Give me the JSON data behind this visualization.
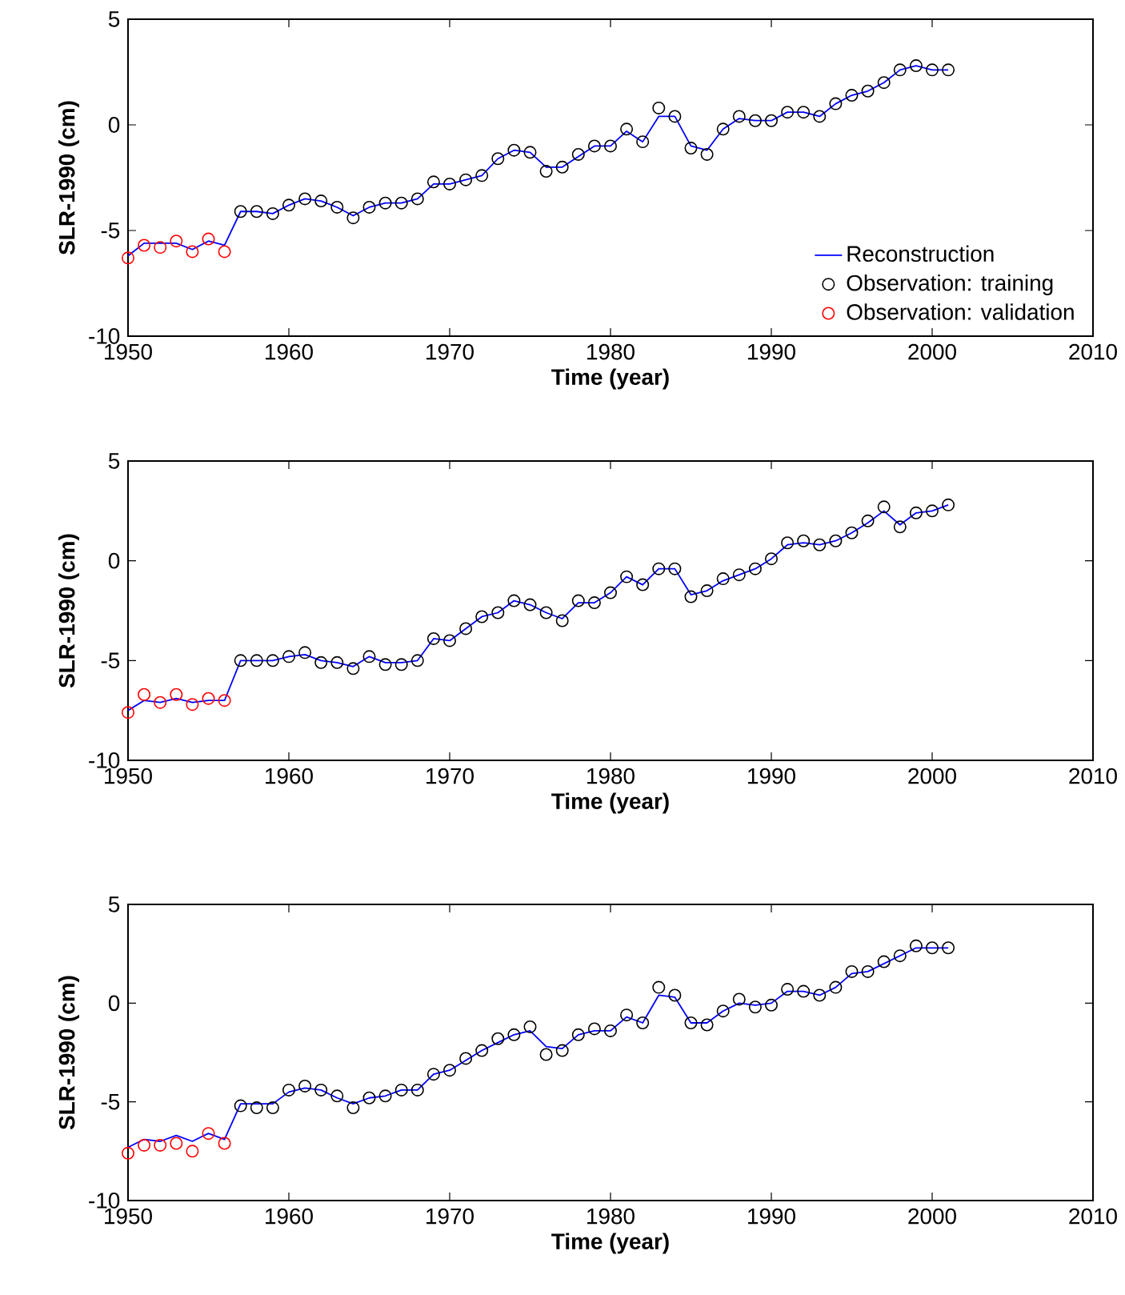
{
  "chart_data": [
    {
      "type": "line",
      "xlabel": "Time (year)",
      "ylabel": "SLR-1990 (cm)",
      "xlim": [
        1950,
        2010
      ],
      "ylim": [
        -10,
        5
      ],
      "xticks": [
        1950,
        1960,
        1970,
        1980,
        1990,
        2000,
        2010
      ],
      "yticks": [
        -10,
        -5,
        0,
        5
      ],
      "legend": "bottom right",
      "series": [
        {
          "name": "Reconstruction",
          "color": "#0000ff",
          "marker": "none",
          "x": [
            1950,
            1951,
            1952,
            1953,
            1954,
            1955,
            1956,
            1957,
            1958,
            1959,
            1960,
            1961,
            1962,
            1963,
            1964,
            1965,
            1966,
            1967,
            1968,
            1969,
            1970,
            1971,
            1972,
            1973,
            1974,
            1975,
            1976,
            1977,
            1978,
            1979,
            1980,
            1981,
            1982,
            1983,
            1984,
            1985,
            1986,
            1987,
            1988,
            1989,
            1990,
            1991,
            1992,
            1993,
            1994,
            1995,
            1996,
            1997,
            1998,
            1999,
            2000,
            2001
          ],
          "values": [
            -6.2,
            -5.6,
            -5.6,
            -5.6,
            -5.9,
            -5.5,
            -5.7,
            -4.1,
            -4.1,
            -4.2,
            -3.8,
            -3.5,
            -3.6,
            -3.9,
            -4.3,
            -3.9,
            -3.7,
            -3.7,
            -3.5,
            -2.8,
            -2.8,
            -2.6,
            -2.4,
            -1.6,
            -1.2,
            -1.3,
            -2.0,
            -2.0,
            -1.5,
            -1.0,
            -1.0,
            -0.3,
            -0.8,
            0.4,
            0.4,
            -1.0,
            -1.2,
            -0.2,
            0.3,
            0.2,
            0.2,
            0.6,
            0.6,
            0.4,
            1.0,
            1.4,
            1.6,
            2.0,
            2.6,
            2.8,
            2.6,
            2.6
          ]
        },
        {
          "name": "Observation: training",
          "type": "scatter",
          "color": "#000000",
          "marker": "circle",
          "x": [
            1957,
            1958,
            1959,
            1960,
            1961,
            1962,
            1963,
            1964,
            1965,
            1966,
            1967,
            1968,
            1969,
            1970,
            1971,
            1972,
            1973,
            1974,
            1975,
            1976,
            1977,
            1978,
            1979,
            1980,
            1981,
            1982,
            1983,
            1984,
            1985,
            1986,
            1987,
            1988,
            1989,
            1990,
            1991,
            1992,
            1993,
            1994,
            1995,
            1996,
            1997,
            1998,
            1999,
            2000,
            2001
          ],
          "values": [
            -4.1,
            -4.1,
            -4.2,
            -3.8,
            -3.5,
            -3.6,
            -3.9,
            -4.4,
            -3.9,
            -3.7,
            -3.7,
            -3.5,
            -2.7,
            -2.8,
            -2.6,
            -2.4,
            -1.6,
            -1.2,
            -1.3,
            -2.2,
            -2.0,
            -1.4,
            -1.0,
            -1.0,
            -0.2,
            -0.8,
            0.8,
            0.4,
            -1.1,
            -1.4,
            -0.2,
            0.4,
            0.2,
            0.2,
            0.6,
            0.6,
            0.4,
            1.0,
            1.4,
            1.6,
            2.0,
            2.6,
            2.8,
            2.6,
            2.6
          ]
        },
        {
          "name": "Observation: validation",
          "type": "scatter",
          "color": "#ff0000",
          "marker": "circle",
          "x": [
            1950,
            1951,
            1952,
            1953,
            1954,
            1955,
            1956
          ],
          "values": [
            -6.3,
            -5.7,
            -5.8,
            -5.5,
            -6.0,
            -5.4,
            -6.0
          ]
        }
      ]
    },
    {
      "type": "line",
      "xlabel": "Time (year)",
      "ylabel": "SLR-1990 (cm)",
      "xlim": [
        1950,
        2010
      ],
      "ylim": [
        -10,
        5
      ],
      "xticks": [
        1950,
        1960,
        1970,
        1980,
        1990,
        2000,
        2010
      ],
      "yticks": [
        -10,
        -5,
        0,
        5
      ],
      "series": [
        {
          "color": "#0000ff",
          "marker": "none",
          "x": [
            1950,
            1951,
            1952,
            1953,
            1954,
            1955,
            1956,
            1957,
            1958,
            1959,
            1960,
            1961,
            1962,
            1963,
            1964,
            1965,
            1966,
            1967,
            1968,
            1969,
            1970,
            1971,
            1972,
            1973,
            1974,
            1975,
            1976,
            1977,
            1978,
            1979,
            1980,
            1981,
            1982,
            1983,
            1984,
            1985,
            1986,
            1987,
            1988,
            1989,
            1990,
            1991,
            1992,
            1993,
            1994,
            1995,
            1996,
            1997,
            1998,
            1999,
            2000,
            2001
          ],
          "values": [
            -7.5,
            -7.0,
            -7.1,
            -6.9,
            -7.1,
            -7.0,
            -7.0,
            -5.0,
            -5.0,
            -5.0,
            -4.8,
            -4.7,
            -5.0,
            -5.1,
            -5.3,
            -4.8,
            -5.1,
            -5.1,
            -5.0,
            -3.9,
            -4.0,
            -3.4,
            -2.8,
            -2.6,
            -2.0,
            -2.2,
            -2.6,
            -2.9,
            -2.1,
            -2.1,
            -1.6,
            -0.8,
            -1.2,
            -0.4,
            -0.4,
            -1.7,
            -1.5,
            -1.0,
            -0.7,
            -0.4,
            0.1,
            0.8,
            0.9,
            0.8,
            1.0,
            1.4,
            1.9,
            2.5,
            1.8,
            2.4,
            2.5,
            2.8
          ]
        },
        {
          "type": "scatter",
          "color": "#000000",
          "marker": "circle",
          "x": [
            1957,
            1958,
            1959,
            1960,
            1961,
            1962,
            1963,
            1964,
            1965,
            1966,
            1967,
            1968,
            1969,
            1970,
            1971,
            1972,
            1973,
            1974,
            1975,
            1976,
            1977,
            1978,
            1979,
            1980,
            1981,
            1982,
            1983,
            1984,
            1985,
            1986,
            1987,
            1988,
            1989,
            1990,
            1991,
            1992,
            1993,
            1994,
            1995,
            1996,
            1997,
            1998,
            1999,
            2000,
            2001
          ],
          "values": [
            -5.0,
            -5.0,
            -5.0,
            -4.8,
            -4.6,
            -5.1,
            -5.1,
            -5.4,
            -4.8,
            -5.2,
            -5.2,
            -5.0,
            -3.9,
            -4.0,
            -3.4,
            -2.8,
            -2.6,
            -2.0,
            -2.2,
            -2.6,
            -3.0,
            -2.0,
            -2.1,
            -1.6,
            -0.8,
            -1.2,
            -0.4,
            -0.4,
            -1.8,
            -1.5,
            -0.9,
            -0.7,
            -0.4,
            0.1,
            0.9,
            1.0,
            0.8,
            1.0,
            1.4,
            2.0,
            2.7,
            1.7,
            2.4,
            2.5,
            2.8
          ]
        },
        {
          "type": "scatter",
          "color": "#ff0000",
          "marker": "circle",
          "x": [
            1950,
            1951,
            1952,
            1953,
            1954,
            1955,
            1956
          ],
          "values": [
            -7.6,
            -6.7,
            -7.1,
            -6.7,
            -7.2,
            -6.9,
            -7.0
          ]
        }
      ]
    },
    {
      "type": "line",
      "xlabel": "Time (year)",
      "ylabel": "SLR-1990 (cm)",
      "xlim": [
        1950,
        2010
      ],
      "ylim": [
        -10,
        5
      ],
      "xticks": [
        1950,
        1960,
        1970,
        1980,
        1990,
        2000,
        2010
      ],
      "yticks": [
        -10,
        -5,
        0,
        5
      ],
      "series": [
        {
          "color": "#0000ff",
          "marker": "none",
          "x": [
            1950,
            1951,
            1952,
            1953,
            1954,
            1955,
            1956,
            1957,
            1958,
            1959,
            1960,
            1961,
            1962,
            1963,
            1964,
            1965,
            1966,
            1967,
            1968,
            1969,
            1970,
            1971,
            1972,
            1973,
            1974,
            1975,
            1976,
            1977,
            1978,
            1979,
            1980,
            1981,
            1982,
            1983,
            1984,
            1985,
            1986,
            1987,
            1988,
            1989,
            1990,
            1991,
            1992,
            1993,
            1994,
            1995,
            1996,
            1997,
            1998,
            1999,
            2000,
            2001
          ],
          "values": [
            -7.3,
            -6.9,
            -7.0,
            -6.7,
            -7.0,
            -6.6,
            -6.9,
            -5.1,
            -5.1,
            -5.1,
            -4.5,
            -4.3,
            -4.4,
            -4.8,
            -5.1,
            -4.8,
            -4.7,
            -4.4,
            -4.4,
            -3.6,
            -3.4,
            -2.9,
            -2.4,
            -2.0,
            -1.6,
            -1.4,
            -2.2,
            -2.3,
            -1.6,
            -1.4,
            -1.4,
            -0.7,
            -1.0,
            0.4,
            0.3,
            -1.0,
            -1.0,
            -0.4,
            0.0,
            -0.1,
            0.0,
            0.6,
            0.6,
            0.4,
            0.8,
            1.5,
            1.6,
            2.0,
            2.4,
            2.8,
            2.8,
            2.8
          ]
        },
        {
          "type": "scatter",
          "color": "#000000",
          "marker": "circle",
          "x": [
            1957,
            1958,
            1959,
            1960,
            1961,
            1962,
            1963,
            1964,
            1965,
            1966,
            1967,
            1968,
            1969,
            1970,
            1971,
            1972,
            1973,
            1974,
            1975,
            1976,
            1977,
            1978,
            1979,
            1980,
            1981,
            1982,
            1983,
            1984,
            1985,
            1986,
            1987,
            1988,
            1989,
            1990,
            1991,
            1992,
            1993,
            1994,
            1995,
            1996,
            1997,
            1998,
            1999,
            2000,
            2001
          ],
          "values": [
            -5.2,
            -5.3,
            -5.3,
            -4.4,
            -4.2,
            -4.4,
            -4.7,
            -5.3,
            -4.8,
            -4.7,
            -4.4,
            -4.4,
            -3.6,
            -3.4,
            -2.8,
            -2.4,
            -1.8,
            -1.6,
            -1.2,
            -2.6,
            -2.4,
            -1.6,
            -1.3,
            -1.4,
            -0.6,
            -1.0,
            0.8,
            0.4,
            -1.0,
            -1.1,
            -0.4,
            0.2,
            -0.2,
            -0.1,
            0.7,
            0.6,
            0.4,
            0.8,
            1.6,
            1.6,
            2.1,
            2.4,
            2.9,
            2.8,
            2.8
          ]
        },
        {
          "type": "scatter",
          "color": "#ff0000",
          "marker": "circle",
          "x": [
            1950,
            1951,
            1952,
            1953,
            1954,
            1955,
            1956
          ],
          "values": [
            -7.6,
            -7.2,
            -7.2,
            -7.1,
            -7.5,
            -6.6,
            -7.1
          ]
        }
      ]
    }
  ]
}
